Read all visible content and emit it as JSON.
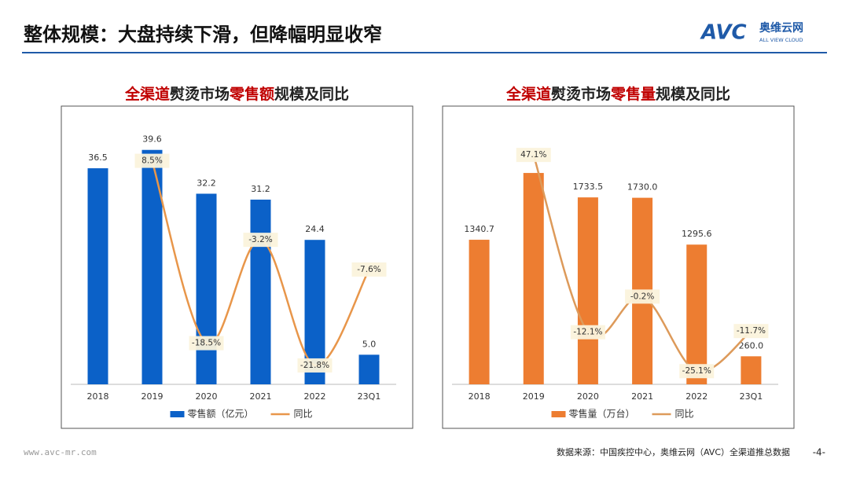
{
  "header": {
    "title": "整体规模：大盘持续下滑，但降幅明显收窄",
    "logo": "AVC",
    "logo_cn": "奥维云网",
    "logo_en": "ALL VIEW CLOUD"
  },
  "footer": {
    "url": "www.avc-mr.com",
    "source": "数据来源：中国疾控中心，奥维云网（AVC）全渠道推总数据",
    "page": "-4-"
  },
  "chart_data": [
    {
      "type": "bar_line",
      "title": [
        {
          "text": "全渠道",
          "color": "#c00000"
        },
        {
          "text": "熨烫市场",
          "color": "#222222"
        },
        {
          "text": "零售额",
          "color": "#c00000"
        },
        {
          "text": "规模及同比",
          "color": "#222222"
        }
      ],
      "categories": [
        "2018",
        "2019",
        "2020",
        "2021",
        "2022",
        "23Q1"
      ],
      "ylim": [
        0,
        47
      ],
      "y2lim": [
        -24.6,
        16.6
      ],
      "series": [
        {
          "name": "零售额（亿元）",
          "color": "#0b61c8",
          "values": [
            36.5,
            39.6,
            32.2,
            31.2,
            24.4,
            5.0
          ],
          "value_labels": [
            "36.5",
            "39.6",
            "32.2",
            "31.2",
            "24.4",
            "5.0"
          ]
        },
        {
          "name": "同比",
          "color": "#e8964a",
          "axis": "y2",
          "values": [
            null,
            8.5,
            -18.5,
            -3.2,
            -21.8,
            -7.6
          ],
          "value_labels": [
            null,
            "8.5%",
            "-18.5%",
            "-3.2%",
            "-21.8%",
            "-7.6%"
          ]
        }
      ]
    },
    {
      "type": "bar_line",
      "title": [
        {
          "text": "全渠道",
          "color": "#c00000"
        },
        {
          "text": "熨烫市场",
          "color": "#222222"
        },
        {
          "text": "零售量",
          "color": "#c00000"
        },
        {
          "text": "规模及同比",
          "color": "#222222"
        }
      ],
      "categories": [
        "2018",
        "2019",
        "2020",
        "2021",
        "2022",
        "23Q1"
      ],
      "ylim": [
        0,
        2580
      ],
      "y2lim": [
        -29.5,
        63.4
      ],
      "series": [
        {
          "name": "零售量（万台）",
          "color": "#ed7d31",
          "values": [
            1340.7,
            1960,
            1733.5,
            1730.0,
            1295.6,
            260.0
          ],
          "value_labels": [
            "1340.7",
            null,
            "1733.5",
            "1730.0",
            "1295.6",
            "260.0"
          ]
        },
        {
          "name": "同比",
          "color": "#dd9a5a",
          "axis": "y2",
          "values": [
            null,
            47.1,
            -12.1,
            -0.2,
            -25.1,
            -11.7
          ],
          "value_labels": [
            null,
            "47.1%",
            "-12.1%",
            "-0.2%",
            "-25.1%",
            "-11.7%"
          ]
        }
      ]
    }
  ]
}
